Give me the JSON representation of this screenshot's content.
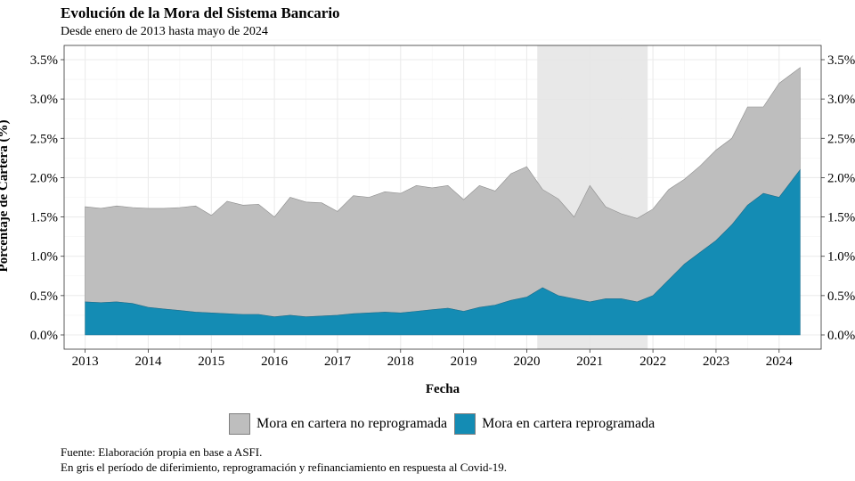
{
  "title": "Evolución de la Mora del Sistema Bancario",
  "subtitle": "Desde enero de 2013 hasta mayo de 2024",
  "caption_lines": [
    "Fuente: Elaboración propia en base a ASFI.",
    "En gris el período de diferimiento, reprogramación y refinanciamiento en respuesta al Covid-19."
  ],
  "legend": [
    {
      "label": "Mora en cartera no reprogramada",
      "color": "#bebebe"
    },
    {
      "label": "Mora en cartera reprogramada",
      "color": "#148cb4"
    }
  ],
  "colors": {
    "no_reprogramada": "#bebebe",
    "reprogramada": "#148cb4",
    "shade": "#e6e6e6",
    "grid": "#ebebeb"
  },
  "chart_data": {
    "type": "area",
    "stacked": true,
    "xlabel": "Fecha",
    "ylabel": "Porcentaje de Cartera (%)",
    "ylim": [
      0,
      3.5
    ],
    "xlim": [
      "2012-09",
      "2024-09"
    ],
    "x_ticks": [
      "2013",
      "2014",
      "2015",
      "2016",
      "2017",
      "2018",
      "2019",
      "2020",
      "2021",
      "2022",
      "2023",
      "2024"
    ],
    "y_ticks": [
      "0.0%",
      "0.5%",
      "1.0%",
      "1.5%",
      "2.0%",
      "2.5%",
      "3.0%",
      "3.5%"
    ],
    "y_axis_secondary": true,
    "grid": true,
    "legend_position": "bottom",
    "shaded_period": {
      "start": "2020-03",
      "end": "2021-12"
    },
    "x": [
      "2013-01",
      "2013-04",
      "2013-07",
      "2013-10",
      "2014-01",
      "2014-04",
      "2014-07",
      "2014-10",
      "2015-01",
      "2015-04",
      "2015-07",
      "2015-10",
      "2016-01",
      "2016-04",
      "2016-07",
      "2016-10",
      "2017-01",
      "2017-04",
      "2017-07",
      "2017-10",
      "2018-01",
      "2018-04",
      "2018-07",
      "2018-10",
      "2019-01",
      "2019-04",
      "2019-07",
      "2019-10",
      "2020-01",
      "2020-04",
      "2020-07",
      "2020-10",
      "2021-01",
      "2021-04",
      "2021-07",
      "2021-10",
      "2022-01",
      "2022-04",
      "2022-07",
      "2022-10",
      "2023-01",
      "2023-04",
      "2023-07",
      "2023-10",
      "2024-01",
      "2024-05"
    ],
    "series": [
      {
        "name": "Mora en cartera reprogramada",
        "values": [
          0.42,
          0.41,
          0.42,
          0.4,
          0.35,
          0.33,
          0.31,
          0.29,
          0.28,
          0.27,
          0.26,
          0.26,
          0.23,
          0.25,
          0.23,
          0.24,
          0.25,
          0.27,
          0.28,
          0.29,
          0.28,
          0.3,
          0.32,
          0.34,
          0.3,
          0.35,
          0.38,
          0.44,
          0.48,
          0.6,
          0.5,
          0.46,
          0.42,
          0.46,
          0.46,
          0.42,
          0.5,
          0.7,
          0.9,
          1.05,
          1.2,
          1.4,
          1.65,
          1.8,
          1.75,
          2.1
        ]
      },
      {
        "name": "Mora en cartera no reprogramada",
        "values": [
          1.21,
          1.2,
          1.22,
          1.22,
          1.26,
          1.28,
          1.31,
          1.35,
          1.24,
          1.43,
          1.39,
          1.4,
          1.27,
          1.5,
          1.46,
          1.44,
          1.32,
          1.5,
          1.47,
          1.53,
          1.52,
          1.6,
          1.55,
          1.56,
          1.42,
          1.55,
          1.45,
          1.61,
          1.66,
          1.25,
          1.23,
          1.04,
          1.48,
          1.17,
          1.08,
          1.06,
          1.1,
          1.15,
          1.08,
          1.1,
          1.15,
          1.1,
          1.25,
          1.1,
          1.45,
          1.3
        ]
      }
    ]
  }
}
